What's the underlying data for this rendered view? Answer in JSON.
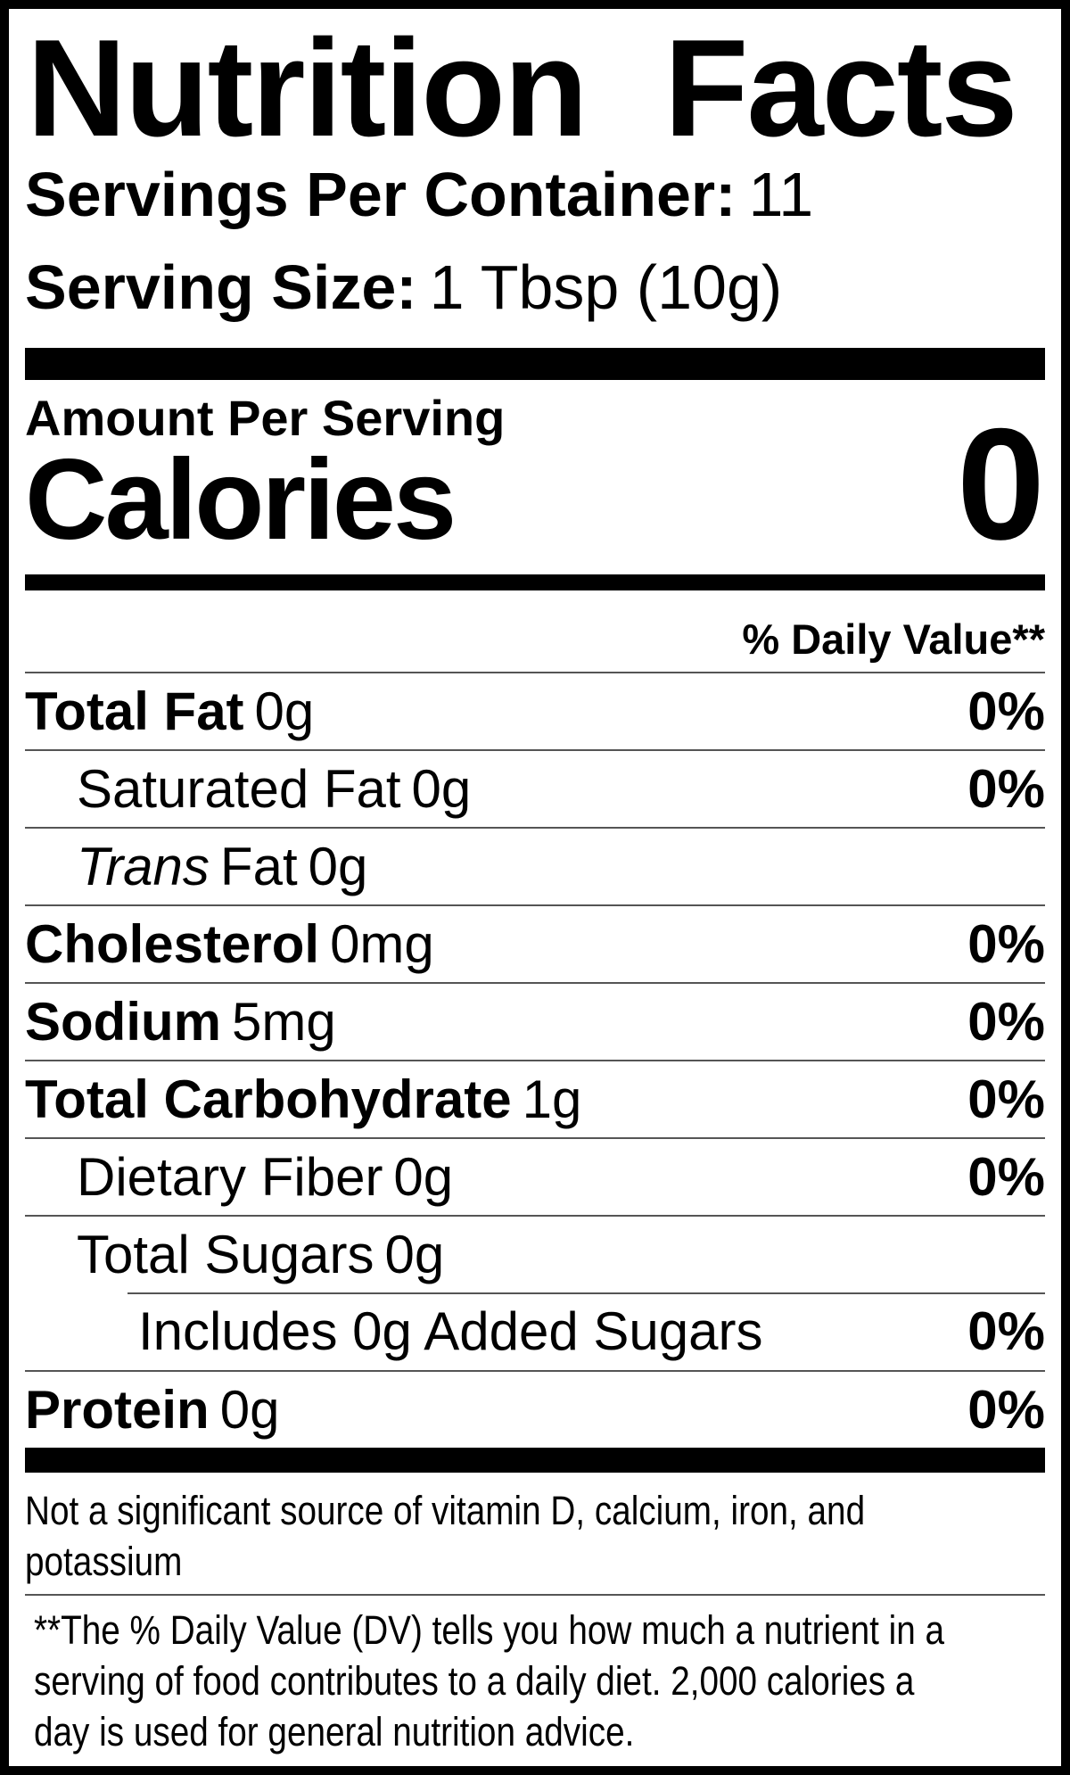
{
  "label": {
    "title": "Nutrition Facts",
    "servings_per_container": {
      "label": "Servings Per Container:",
      "value": "11"
    },
    "serving_size": {
      "label": "Serving Size:",
      "value": "1 Tbsp (10g)"
    },
    "amount_per_serving": "Amount Per Serving",
    "calories": {
      "label": "Calories",
      "value": "0"
    },
    "daily_value_header": "% Daily Value**",
    "rows": [
      {
        "name": "Total Fat",
        "amount": "0g",
        "dv": "0%"
      },
      {
        "name": "Saturated Fat",
        "amount": "0g",
        "dv": "0%"
      },
      {
        "name_italic": "Trans",
        "name": "Fat",
        "amount": "0g",
        "dv": ""
      },
      {
        "name": "Cholesterol",
        "amount": "0mg",
        "dv": "0%"
      },
      {
        "name": "Sodium",
        "amount": "5mg",
        "dv": "0%"
      },
      {
        "name": "Total Carbohydrate",
        "amount": "1g",
        "dv": "0%"
      },
      {
        "name": "Dietary Fiber",
        "amount": "0g",
        "dv": "0%"
      },
      {
        "name": "Total Sugars",
        "amount": "0g",
        "dv": ""
      },
      {
        "name": "Includes 0g Added Sugars",
        "amount": "",
        "dv": "0%"
      },
      {
        "name": "Protein",
        "amount": "0g",
        "dv": "0%"
      }
    ],
    "not_significant": {
      "line1": "Not a significant source of vitamin D, calcium, iron, and",
      "line2": "potassium"
    },
    "footnote": {
      "line1": "**The % Daily Value (DV) tells you how much a nutrient in a",
      "line2": "serving of food contributes to a daily diet. 2,000 calories a",
      "line3": "day is used for general nutrition advice."
    },
    "colors": {
      "text": "#000000",
      "background": "#ffffff",
      "rule": "#555555",
      "bar": "#000000"
    }
  }
}
